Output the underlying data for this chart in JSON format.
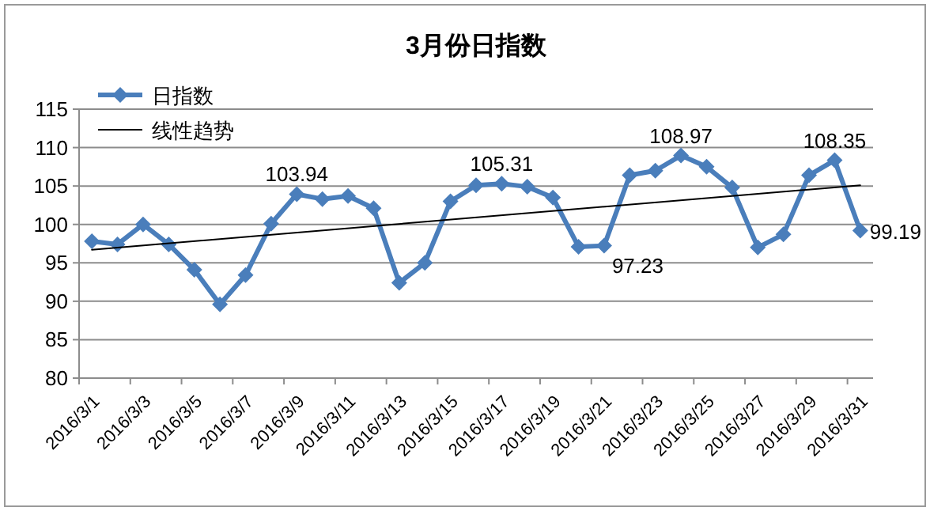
{
  "chart_data": {
    "type": "line",
    "title": "3月份日指数",
    "categories": [
      "2016/3/1",
      null,
      "2016/3/3",
      null,
      "2016/3/5",
      null,
      "2016/3/7",
      null,
      "2016/3/9",
      null,
      "2016/3/11",
      null,
      "2016/3/13",
      null,
      "2016/3/15",
      null,
      "2016/3/17",
      null,
      "2016/3/19",
      null,
      "2016/3/21",
      null,
      "2016/3/23",
      null,
      "2016/3/25",
      null,
      "2016/3/27",
      null,
      "2016/3/29",
      null,
      "2016/3/31"
    ],
    "series": [
      {
        "name": "日指数",
        "color": "#4a7ebb",
        "marker": "diamond",
        "values": [
          97.8,
          97.4,
          100.0,
          97.4,
          94.1,
          89.6,
          93.4,
          100.1,
          103.94,
          103.3,
          103.7,
          102.1,
          92.4,
          95.0,
          103.0,
          105.1,
          105.31,
          104.9,
          103.5,
          97.1,
          97.23,
          106.4,
          107.0,
          108.97,
          107.5,
          104.8,
          97.0,
          98.7,
          106.4,
          108.35,
          99.19
        ],
        "value_labels": [
          null,
          null,
          null,
          null,
          null,
          null,
          null,
          null,
          "103.94",
          null,
          null,
          null,
          null,
          null,
          null,
          null,
          "105.31",
          null,
          null,
          null,
          "97.23",
          null,
          null,
          "108.97",
          null,
          null,
          null,
          null,
          null,
          "108.35",
          "99.19"
        ]
      },
      {
        "name": "线性趋势",
        "color": "#000000",
        "type": "line",
        "marker": "none",
        "values": [
          96.7,
          null,
          null,
          null,
          null,
          null,
          null,
          null,
          null,
          null,
          null,
          null,
          null,
          null,
          null,
          null,
          null,
          null,
          null,
          null,
          null,
          null,
          null,
          null,
          null,
          null,
          null,
          null,
          null,
          null,
          105.1
        ]
      }
    ],
    "ylim": [
      80,
      115
    ],
    "yticks": [
      80,
      85,
      90,
      95,
      100,
      105,
      110,
      115
    ],
    "grid": "y",
    "legend": "top left"
  }
}
